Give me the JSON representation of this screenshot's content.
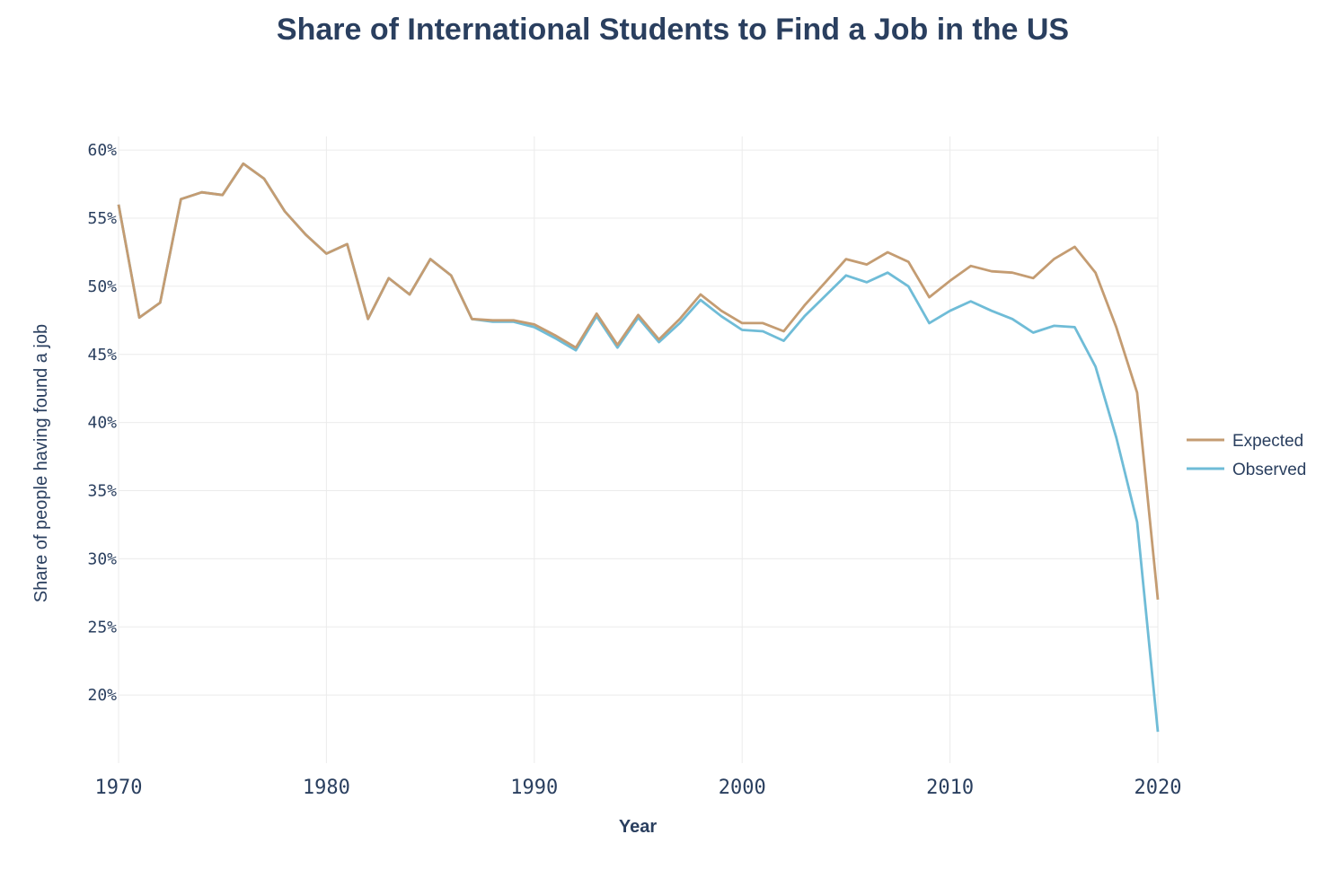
{
  "chart_data": {
    "type": "line",
    "title": "Share of International Students to Find a Job in the US",
    "xlabel": "Year",
    "ylabel": "Share of people having found a job",
    "xlim": [
      1970,
      2020
    ],
    "ylim": [
      15,
      61
    ],
    "x_ticks": [
      1970,
      1980,
      1990,
      2000,
      2010,
      2020
    ],
    "x_tick_labels": [
      "1970",
      "1980",
      "1990",
      "2000",
      "2010",
      "2020"
    ],
    "y_ticks": [
      20,
      25,
      30,
      35,
      40,
      45,
      50,
      55,
      60
    ],
    "y_tick_labels": [
      "20%",
      "25%",
      "30%",
      "35%",
      "40%",
      "45%",
      "50%",
      "55%",
      "60%"
    ],
    "grid": true,
    "legend_position": "right",
    "series": [
      {
        "name": "Expected",
        "color": "#c49c72",
        "x": [
          1970,
          1971,
          1972,
          1973,
          1974,
          1975,
          1976,
          1977,
          1978,
          1979,
          1980,
          1981,
          1982,
          1983,
          1984,
          1985,
          1986,
          1987,
          1988,
          1989,
          1990,
          1991,
          1992,
          1993,
          1994,
          1995,
          1996,
          1997,
          1998,
          1999,
          2000,
          2001,
          2002,
          2003,
          2004,
          2005,
          2006,
          2007,
          2008,
          2009,
          2010,
          2011,
          2012,
          2013,
          2014,
          2015,
          2016,
          2017,
          2018,
          2019,
          2020
        ],
        "values": [
          56.0,
          47.7,
          48.8,
          56.4,
          56.9,
          56.7,
          59.0,
          57.9,
          55.5,
          53.8,
          52.4,
          53.1,
          47.6,
          50.6,
          49.4,
          52.0,
          50.8,
          47.6,
          47.5,
          47.5,
          47.2,
          46.4,
          45.5,
          48.0,
          45.7,
          47.9,
          46.1,
          47.6,
          49.4,
          48.2,
          47.3,
          47.3,
          46.7,
          48.6,
          50.3,
          52.0,
          51.6,
          52.5,
          51.8,
          49.2,
          50.4,
          51.5,
          51.1,
          51.0,
          50.6,
          52.0,
          52.9,
          51.0,
          47.0,
          42.2,
          27.0
        ]
      },
      {
        "name": "Observed",
        "color": "#6fbcd7",
        "x": [
          1970,
          1971,
          1972,
          1973,
          1974,
          1975,
          1976,
          1977,
          1978,
          1979,
          1980,
          1981,
          1982,
          1983,
          1984,
          1985,
          1986,
          1987,
          1988,
          1989,
          1990,
          1991,
          1992,
          1993,
          1994,
          1995,
          1996,
          1997,
          1998,
          1999,
          2000,
          2001,
          2002,
          2003,
          2004,
          2005,
          2006,
          2007,
          2008,
          2009,
          2010,
          2011,
          2012,
          2013,
          2014,
          2015,
          2016,
          2017,
          2018,
          2019,
          2020
        ],
        "values": [
          56.0,
          47.7,
          48.8,
          56.4,
          56.9,
          56.7,
          59.0,
          57.9,
          55.5,
          53.8,
          52.4,
          53.1,
          47.6,
          50.6,
          49.4,
          52.0,
          50.8,
          47.6,
          47.4,
          47.4,
          47.0,
          46.2,
          45.3,
          47.8,
          45.5,
          47.7,
          45.9,
          47.3,
          49.0,
          47.8,
          46.8,
          46.7,
          46.0,
          47.8,
          49.3,
          50.8,
          50.3,
          51.0,
          50.0,
          47.3,
          48.2,
          48.9,
          48.2,
          47.6,
          46.6,
          47.1,
          47.0,
          44.1,
          38.9,
          32.7,
          17.3
        ]
      }
    ]
  }
}
